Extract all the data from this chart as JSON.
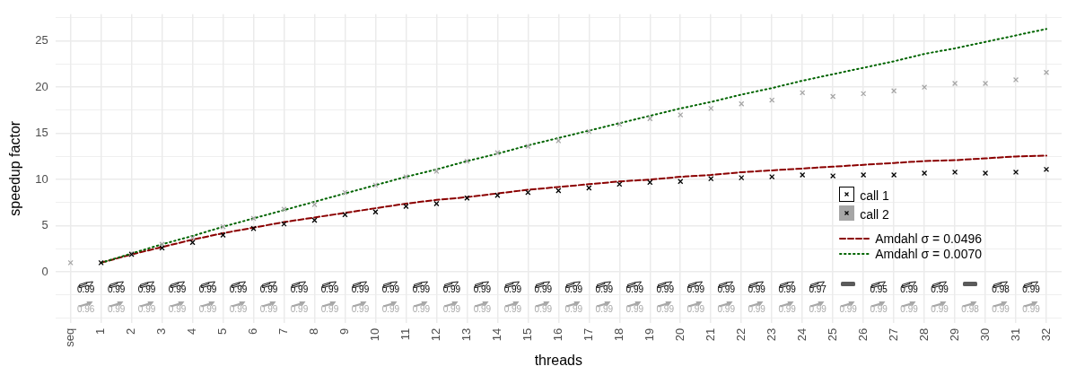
{
  "chart_data": {
    "type": "scatter",
    "xlabel": "threads",
    "ylabel": "speedup factor",
    "categories": [
      "seq",
      "1",
      "2",
      "3",
      "4",
      "5",
      "6",
      "7",
      "8",
      "9",
      "10",
      "11",
      "12",
      "13",
      "14",
      "15",
      "16",
      "17",
      "18",
      "19",
      "20",
      "21",
      "22",
      "23",
      "24",
      "25",
      "26",
      "27",
      "28",
      "29",
      "30",
      "31",
      "32"
    ],
    "series": [
      {
        "name": "call 1",
        "color": "#000000",
        "values": [
          null,
          1.0,
          1.9,
          2.6,
          3.2,
          4.0,
          4.7,
          5.2,
          5.6,
          6.2,
          6.5,
          7.1,
          7.4,
          8.0,
          8.3,
          8.6,
          8.8,
          9.1,
          9.5,
          9.7,
          9.8,
          10.1,
          10.2,
          10.3,
          10.5,
          10.4,
          10.5,
          10.5,
          10.7,
          10.8,
          10.7,
          10.8,
          11.1
        ]
      },
      {
        "name": "call 2",
        "color": "#a6a6a6",
        "values": [
          1.0,
          null,
          2.0,
          3.0,
          3.7,
          4.9,
          5.8,
          6.8,
          7.3,
          8.6,
          9.4,
          10.3,
          10.9,
          12.0,
          12.9,
          13.6,
          14.2,
          15.2,
          16.0,
          16.6,
          17.0,
          17.7,
          18.2,
          18.6,
          19.4,
          19.0,
          19.3,
          19.6,
          20.0,
          20.4,
          20.4,
          20.8,
          21.6
        ]
      },
      {
        "name": "Amdahl σ = 0.0496",
        "type": "line",
        "marker": "none",
        "line_style": "dashed",
        "color": "#8b0000",
        "values": [
          null,
          1.0,
          1.9,
          2.7,
          3.5,
          4.2,
          4.8,
          5.4,
          5.9,
          6.4,
          6.9,
          7.4,
          7.8,
          8.1,
          8.5,
          8.9,
          9.2,
          9.5,
          9.8,
          10.0,
          10.3,
          10.5,
          10.8,
          11.0,
          11.2,
          11.4,
          11.6,
          11.8,
          12.0,
          12.1,
          12.3,
          12.5,
          12.6
        ]
      },
      {
        "name": "Amdahl σ = 0.0070",
        "type": "line",
        "marker": "none",
        "line_style": "dotted",
        "color": "#006400",
        "values": [
          null,
          1.0,
          2.0,
          3.0,
          3.9,
          4.9,
          5.8,
          6.7,
          7.6,
          8.5,
          9.4,
          10.3,
          11.1,
          12.0,
          12.8,
          13.7,
          14.5,
          15.3,
          16.1,
          16.9,
          17.7,
          18.4,
          19.2,
          19.9,
          20.7,
          21.4,
          22.1,
          22.8,
          23.6,
          24.2,
          24.9,
          25.6,
          26.3
        ]
      }
    ],
    "marker": "cross",
    "grid": true,
    "legend": "bottom right",
    "ylim": [
      -5.5,
      27.9
    ],
    "yticks": [
      {
        "value": -5,
        "label": null
      },
      {
        "value": -2.5,
        "label": null
      },
      0,
      {
        "value": 2.5,
        "label": null
      },
      5,
      {
        "value": 7.5,
        "label": null
      },
      10,
      {
        "value": 12.5,
        "label": null
      },
      15,
      {
        "value": 17.5,
        "label": null
      },
      20,
      {
        "value": 22.5,
        "label": null
      },
      25,
      {
        "value": 27.5,
        "label": null
      }
    ],
    "annotations": [
      "0.99",
      "0.99",
      "0.99",
      "0.99",
      "0.99",
      "0.99",
      "0.99",
      "0.99",
      "0.99",
      "0.99",
      "0.99",
      "0.99",
      "0.99",
      "0.99",
      "0.99",
      "0.99",
      "0.99",
      "0.99",
      "0.99",
      "0.99",
      "0.99",
      "0.99",
      "0.99",
      "0.99",
      "0.97",
      "0.95",
      "0.99",
      "0.99",
      "0.98",
      "0.99",
      "0.96",
      "0.99",
      "0.99",
      "0.99",
      "0.99",
      "0.99",
      "0.99",
      "0.99",
      "0.99",
      "0.99",
      "0.99",
      "0.99",
      "0.99",
      "0.99",
      "0.99",
      "0.99",
      "0.99",
      "0.99",
      "0.99",
      "0.99",
      "0.99",
      "0.99",
      "0.99",
      "0.99",
      "0.99",
      "0.99",
      "0.99",
      "0.99",
      "0.99",
      "0.98",
      "0.99",
      "0.99"
    ]
  }
}
